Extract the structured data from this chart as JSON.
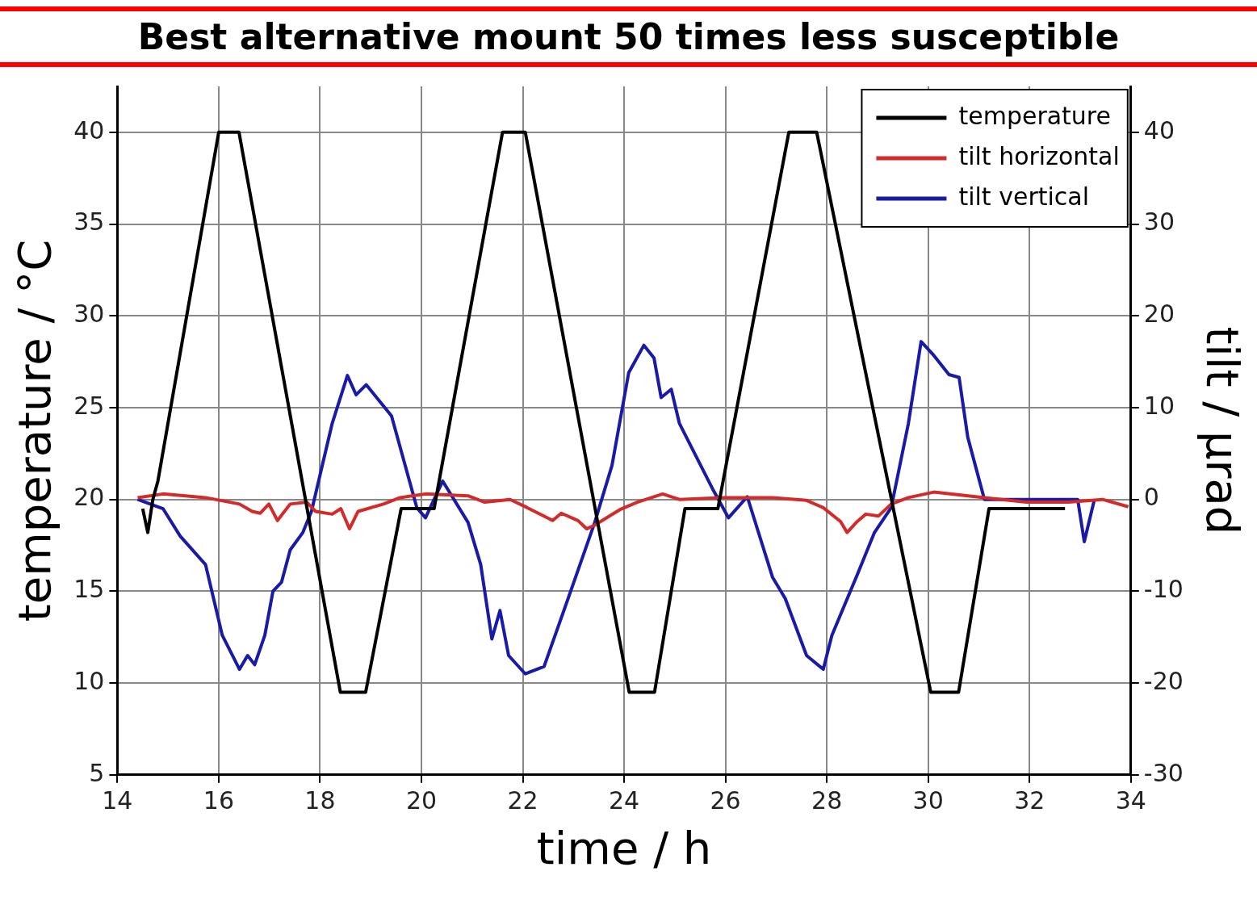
{
  "chart_data": {
    "type": "line",
    "xlabel": "time / h",
    "ylabel": "temperature / °C",
    "y2label": "tilt / µrad",
    "annotations": [
      "Best alternative mount 50 times less susceptible"
    ],
    "xlim": [
      14,
      34
    ],
    "xticks": [
      14,
      16,
      18,
      20,
      22,
      24,
      26,
      28,
      30,
      32,
      34
    ],
    "ylim": [
      5,
      42.5
    ],
    "yticks": [
      5,
      10,
      15,
      20,
      25,
      30,
      35,
      40
    ],
    "y2lim": [
      -30,
      45
    ],
    "y2ticks": [
      -30,
      -20,
      -10,
      0,
      10,
      20,
      30,
      40
    ],
    "grid": true,
    "legend": "top right",
    "marker": "none",
    "line_style": "solid",
    "series": [
      {
        "name": "temperature",
        "color": "#000000",
        "x": [
          14.5,
          14.6,
          14.7,
          14.8,
          16.0,
          16.4,
          18.4,
          18.9,
          19.6,
          20.25,
          21.6,
          22.05,
          24.1,
          24.6,
          25.2,
          25.85,
          27.25,
          27.8,
          30.05,
          30.6,
          31.2,
          32.7
        ],
        "values": [
          19.5,
          18.2,
          20,
          21,
          40,
          40,
          9.5,
          9.5,
          19.5,
          19.5,
          40,
          40,
          9.5,
          9.5,
          19.5,
          19.5,
          40,
          40,
          9.5,
          9.5,
          19.5,
          19.5
        ]
      },
      {
        "name": "tilt horizontal",
        "color": "#d42a2a",
        "axis": "y2",
        "x": [
          14.4,
          14.9,
          15.74,
          16.41,
          16.66,
          16.82,
          16.99,
          17.16,
          17.41,
          17.74,
          17.91,
          18.24,
          18.41,
          18.58,
          18.75,
          19.25,
          19.58,
          20.08,
          20.92,
          21.25,
          21.75,
          22.09,
          22.59,
          22.76,
          23.09,
          23.26,
          23.42,
          23.92,
          24.26,
          24.76,
          25.09,
          25.93,
          26.93,
          27.6,
          27.93,
          28.27,
          28.4,
          28.6,
          28.77,
          29.02,
          29.27,
          29.61,
          30.11,
          31.11,
          31.94,
          32.77,
          33.44,
          33.95
        ],
        "values": [
          0.2,
          0.6,
          0.2,
          -0.5,
          -1.3,
          -1.5,
          -0.5,
          -2.3,
          -0.5,
          -0.3,
          -1.3,
          -1.6,
          -1,
          -3.2,
          -1.3,
          -0.5,
          0.2,
          0.6,
          0.4,
          -0.3,
          0,
          -0.9,
          -2.3,
          -1.5,
          -2.3,
          -3.2,
          -2.8,
          -1.1,
          -0.3,
          0.6,
          0,
          0.2,
          0.2,
          -0.1,
          -0.9,
          -2.4,
          -3.6,
          -2.4,
          -1.6,
          -1.8,
          -0.5,
          0.2,
          0.8,
          0.2,
          -0.3,
          -0.3,
          0,
          -0.8
        ]
      },
      {
        "name": "tilt vertical",
        "color": "#1a1aa8",
        "axis": "y2",
        "x": [
          14.4,
          14.9,
          15.24,
          15.74,
          16.07,
          16.41,
          16.57,
          16.71,
          16.91,
          17.07,
          17.24,
          17.41,
          17.66,
          17.83,
          18.24,
          18.54,
          18.71,
          18.91,
          19.41,
          19.91,
          20.08,
          20.42,
          20.92,
          21.17,
          21.39,
          21.55,
          21.72,
          22.05,
          22.42,
          22.92,
          23.42,
          23.76,
          24.09,
          24.39,
          24.59,
          24.73,
          24.93,
          25.09,
          25.76,
          26.06,
          26.43,
          26.93,
          27.18,
          27.6,
          27.93,
          28.1,
          28.6,
          28.94,
          29.27,
          29.61,
          29.86,
          30.11,
          30.41,
          30.61,
          30.78,
          31.11,
          32.95,
          33.08,
          33.28
        ],
        "values": [
          0,
          -1,
          -4,
          -7.1,
          -14.8,
          -18.5,
          -17,
          -18,
          -14.8,
          -10,
          -9,
          -5.5,
          -3.6,
          -1.3,
          8.3,
          13.5,
          11.4,
          12.5,
          9.1,
          -0.9,
          -2,
          2,
          -2.5,
          -7.1,
          -15.2,
          -12.1,
          -17,
          -19,
          -18.2,
          -10.4,
          -2.5,
          3.7,
          13.8,
          16.8,
          15.4,
          11.1,
          12,
          8.3,
          1,
          -2,
          0.3,
          -8.5,
          -10.8,
          -17,
          -18.5,
          -14.8,
          -8.2,
          -3.6,
          -0.9,
          8.3,
          17.2,
          15.7,
          13.6,
          13.3,
          6.8,
          0,
          0,
          -4.6,
          0
        ]
      }
    ]
  }
}
